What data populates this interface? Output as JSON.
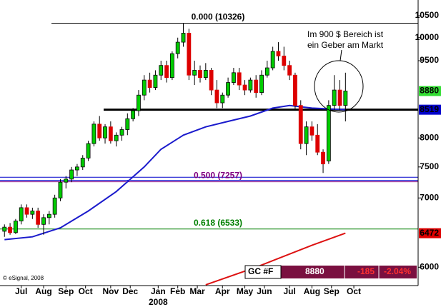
{
  "chart_data": {
    "type": "candlestick",
    "log_scale": true,
    "ylim": [
      5760,
      10874
    ],
    "yticks": [
      6000,
      7000,
      7500,
      8000,
      9500,
      10000,
      10500
    ],
    "xlim": [
      -0.8,
      74
    ],
    "xticks": [
      {
        "value": 3,
        "label": "Jul"
      },
      {
        "value": 7,
        "label": "Aug"
      },
      {
        "value": 11,
        "label": "Sep"
      },
      {
        "value": 14.5,
        "label": "Oct"
      },
      {
        "value": 19,
        "label": "Nov"
      },
      {
        "value": 22.5,
        "label": "Dec"
      },
      {
        "value": 27.5,
        "label": "Jan"
      },
      {
        "value": 31,
        "label": "Feb"
      },
      {
        "value": 34.5,
        "label": "Mar"
      },
      {
        "value": 39,
        "label": "Apr"
      },
      {
        "value": 43,
        "label": "May"
      },
      {
        "value": 46.5,
        "label": "Jun"
      },
      {
        "value": 51,
        "label": "Jul"
      },
      {
        "value": 55,
        "label": "Aug"
      },
      {
        "value": 58.5,
        "label": "Sep"
      },
      {
        "value": 62.5,
        "label": "Oct"
      }
    ],
    "year_label": {
      "value": 27.5,
      "label": "2008"
    },
    "up_color": "#00cc00",
    "down_color": "#dd0000",
    "open": [
      6500,
      6560,
      6480,
      6650,
      6850,
      6750,
      6800,
      6600,
      6700,
      6750,
      7000,
      7250,
      7300,
      7450,
      7500,
      7650,
      7900,
      8250,
      8000,
      8200,
      7950,
      8050,
      8150,
      8350,
      8500,
      8800,
      9100,
      8950,
      9200,
      9400,
      9150,
      9650,
      9900,
      10100,
      9200,
      9300,
      9150,
      9300,
      8900,
      8650,
      8800,
      9050,
      9250,
      9000,
      8900,
      9100,
      8850,
      9200,
      9350,
      9700,
      9600,
      9400,
      9200,
      8600,
      7900,
      8200,
      8050,
      7750,
      7600,
      8600,
      8900,
      8600
    ],
    "high": [
      6600,
      6620,
      6680,
      6900,
      6900,
      6850,
      6850,
      6750,
      6800,
      7050,
      7300,
      7350,
      7500,
      7550,
      7700,
      7950,
      8300,
      8400,
      8250,
      8300,
      8100,
      8200,
      8450,
      8550,
      8900,
      9200,
      9250,
      9300,
      9500,
      9500,
      9700,
      10000,
      10326,
      10200,
      9500,
      9400,
      9450,
      9350,
      9100,
      8850,
      9150,
      9350,
      9350,
      9100,
      9150,
      9200,
      9300,
      9500,
      9800,
      9900,
      9800,
      9500,
      9250,
      8700,
      8300,
      8300,
      8250,
      7800,
      8700,
      9200,
      9100,
      9250
    ],
    "low": [
      6420,
      6450,
      6460,
      6600,
      6700,
      6680,
      6550,
      6450,
      6600,
      6700,
      6950,
      7150,
      7250,
      7350,
      7450,
      7600,
      7850,
      7950,
      7900,
      7900,
      7850,
      7950,
      8050,
      8300,
      8400,
      8700,
      8850,
      8900,
      9100,
      9050,
      9100,
      9550,
      9800,
      9100,
      9000,
      9050,
      9100,
      8800,
      8550,
      8550,
      8750,
      9000,
      8900,
      8800,
      8850,
      8750,
      8800,
      9150,
      9300,
      9500,
      9300,
      9100,
      8500,
      7800,
      7700,
      7950,
      7700,
      7400,
      7550,
      8500,
      8500,
      8300
    ],
    "close": [
      6560,
      6480,
      6650,
      6850,
      6750,
      6800,
      6600,
      6700,
      6750,
      7000,
      7250,
      7300,
      7450,
      7500,
      7650,
      7900,
      8250,
      8000,
      8200,
      7950,
      8050,
      8150,
      8350,
      8500,
      8800,
      9100,
      8950,
      9200,
      9400,
      9150,
      9650,
      9900,
      10100,
      9200,
      9300,
      9150,
      9300,
      8900,
      8650,
      8800,
      9050,
      9250,
      9000,
      8900,
      9100,
      8850,
      9200,
      9350,
      9700,
      9600,
      9400,
      9200,
      8600,
      7900,
      8200,
      8050,
      7750,
      7550,
      8600,
      8900,
      8600,
      8880
    ],
    "lines": [
      {
        "color": "#1a1acc",
        "x": [
          0,
          5,
          10,
          15,
          20,
          25,
          28,
          32,
          36,
          40,
          44,
          48,
          51,
          55,
          61
        ],
        "values": [
          6380,
          6420,
          6550,
          6800,
          7100,
          7500,
          7800,
          8050,
          8200,
          8300,
          8400,
          8550,
          8600,
          8550,
          8519
        ]
      },
      {
        "color": "#dd1111",
        "x": [
          36,
          45,
          55,
          61
        ],
        "values": [
          5770,
          6000,
          6300,
          6472
        ]
      }
    ],
    "fib_levels": [
      {
        "label": "0.000 (10326)",
        "value": 10326,
        "color": "#000000"
      },
      {
        "label": "0.500 (7257)",
        "value": 7257,
        "color": "#800080"
      },
      {
        "label": "0.618 (6533)",
        "value": 6533,
        "color": "#008000"
      }
    ],
    "support_line": {
      "value": 8519,
      "color": "#000000"
    },
    "blue_lines": [
      7330,
      7280
    ],
    "price_markers": [
      {
        "value": 8880,
        "color": "#33dd33"
      },
      {
        "value": 8519,
        "color": "#0000cc"
      },
      {
        "value": 6472,
        "color": "#dd0000"
      }
    ],
    "annotation": [
      "Im 900 $ Bereich ist",
      "ein Geber am Markt"
    ],
    "copyright": "© eSignal, 2008",
    "quote": {
      "symbol": "GC #F",
      "last": 8880,
      "change": -185,
      "change_pct": {
        "value": -2.04,
        "label": "-2.04%"
      }
    }
  }
}
